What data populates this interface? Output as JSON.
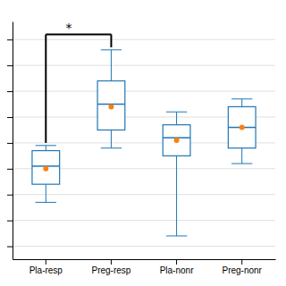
{
  "chart_data": {
    "type": "box",
    "categories": [
      "Pla-resp",
      "Preg-resp",
      "Pla-nonr",
      "Preg-nonr"
    ],
    "whisker_low": [
      0.27,
      0.48,
      0.14,
      0.42
    ],
    "q1": [
      0.34,
      0.55,
      0.45,
      0.48
    ],
    "median": [
      0.41,
      0.65,
      0.52,
      0.56
    ],
    "q3": [
      0.47,
      0.74,
      0.57,
      0.64
    ],
    "whisker_high": [
      0.49,
      0.86,
      0.62,
      0.67
    ],
    "mean": [
      0.4,
      0.64,
      0.51,
      0.56
    ],
    "marker": "circle",
    "annotations": [
      {
        "text": "*",
        "from": "Pla-resp",
        "to": "Preg-resp",
        "y_top": 0.92,
        "y_left_bottom": 0.5,
        "y_right_bottom": 0.87
      }
    ],
    "ylim": [
      0.05,
      0.97
    ],
    "yticks": [
      0.1,
      0.2,
      0.3,
      0.4,
      0.5,
      0.6,
      0.7,
      0.8,
      0.9
    ],
    "grid": true,
    "tick_labels": "x"
  }
}
